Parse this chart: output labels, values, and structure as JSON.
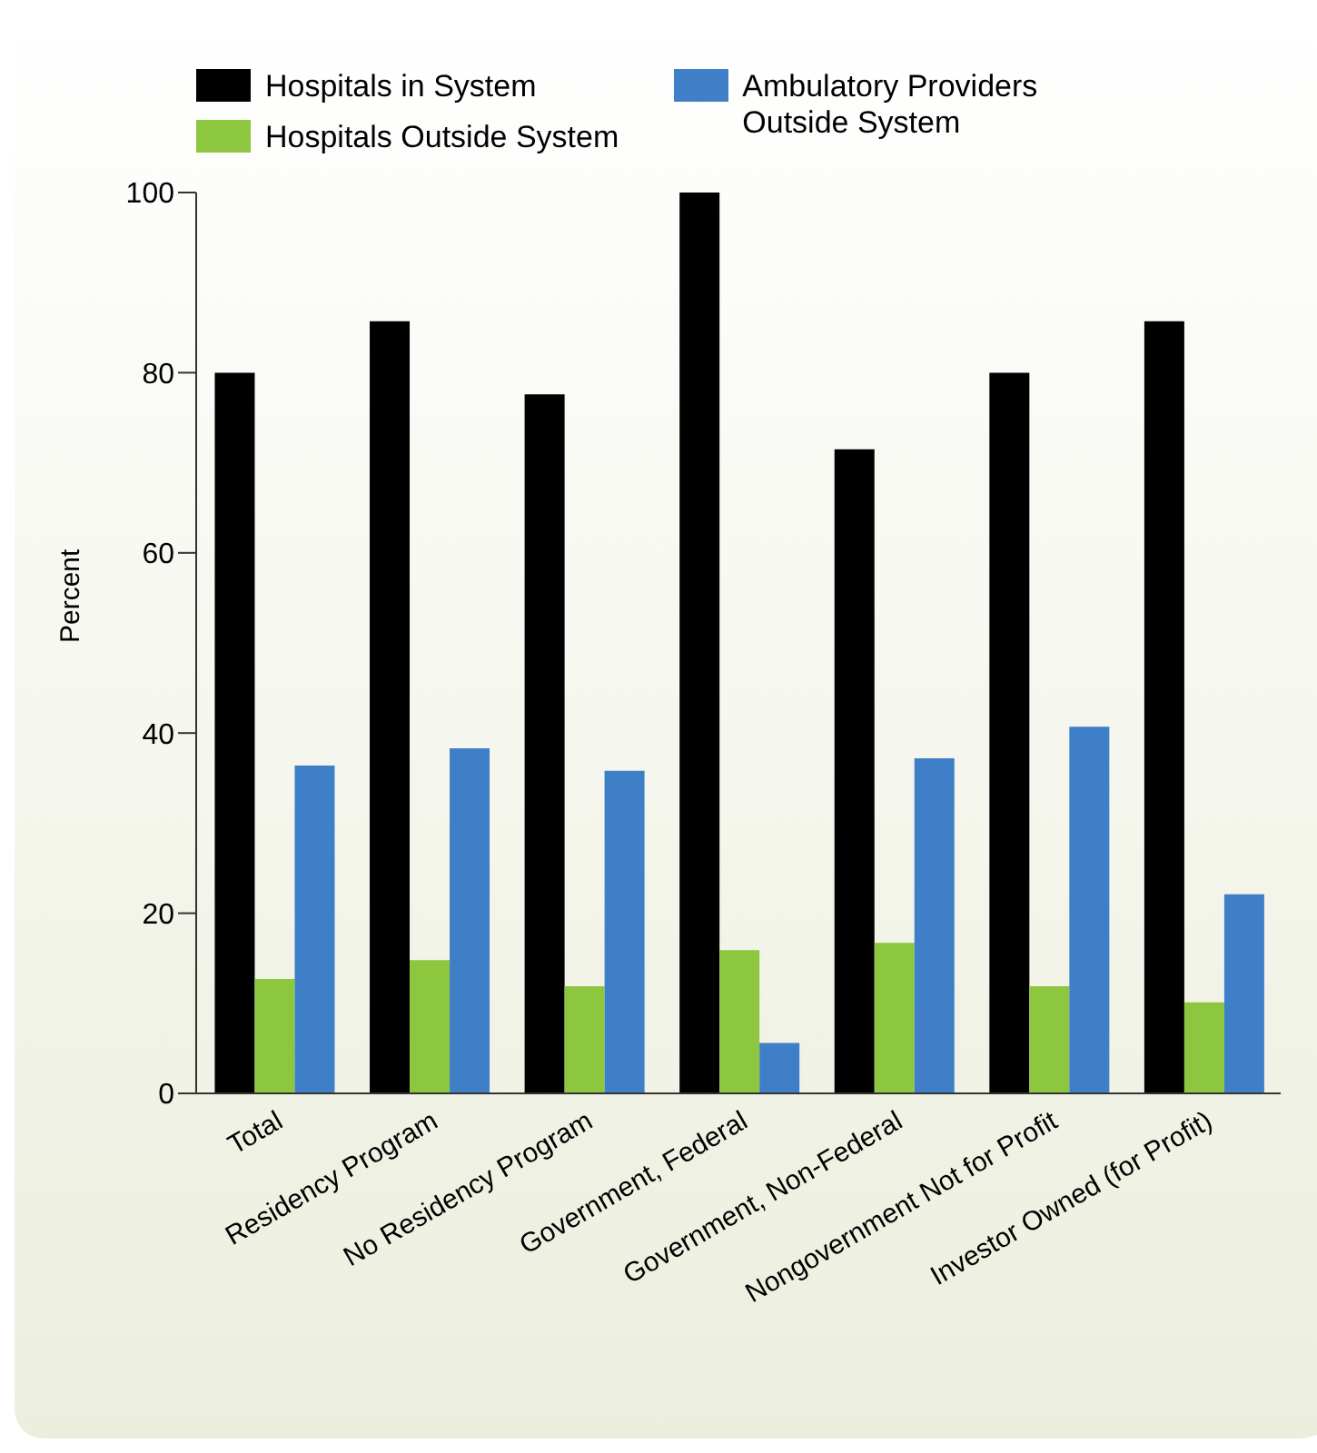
{
  "chart_data": {
    "type": "bar",
    "ylabel": "Percent",
    "categories": [
      "Total",
      "Residency Program",
      "No Residency Program",
      "Government, Federal",
      "Government, Non-Federal",
      "Nongovernment Not for Profit",
      "Investor Owned (for Profit)"
    ],
    "series": [
      {
        "name": "Hospitals in System",
        "color": "#000000",
        "values": [
          80,
          85.7,
          77.6,
          100,
          71.5,
          80,
          85.7
        ]
      },
      {
        "name": "Hospitals Outside System",
        "color": "#8dc63f",
        "values": [
          12.7,
          14.8,
          11.9,
          15.9,
          16.7,
          11.9,
          10.1
        ]
      },
      {
        "name": "Ambulatory Providers Outside System",
        "color": "#3f7fc8",
        "values": [
          36.4,
          38.3,
          35.8,
          5.6,
          37.2,
          40.7,
          22.1
        ]
      }
    ],
    "ylim": [
      0,
      100
    ],
    "yticks": [
      0,
      20,
      40,
      60,
      80,
      100
    ],
    "grid": false,
    "legend": "top"
  }
}
